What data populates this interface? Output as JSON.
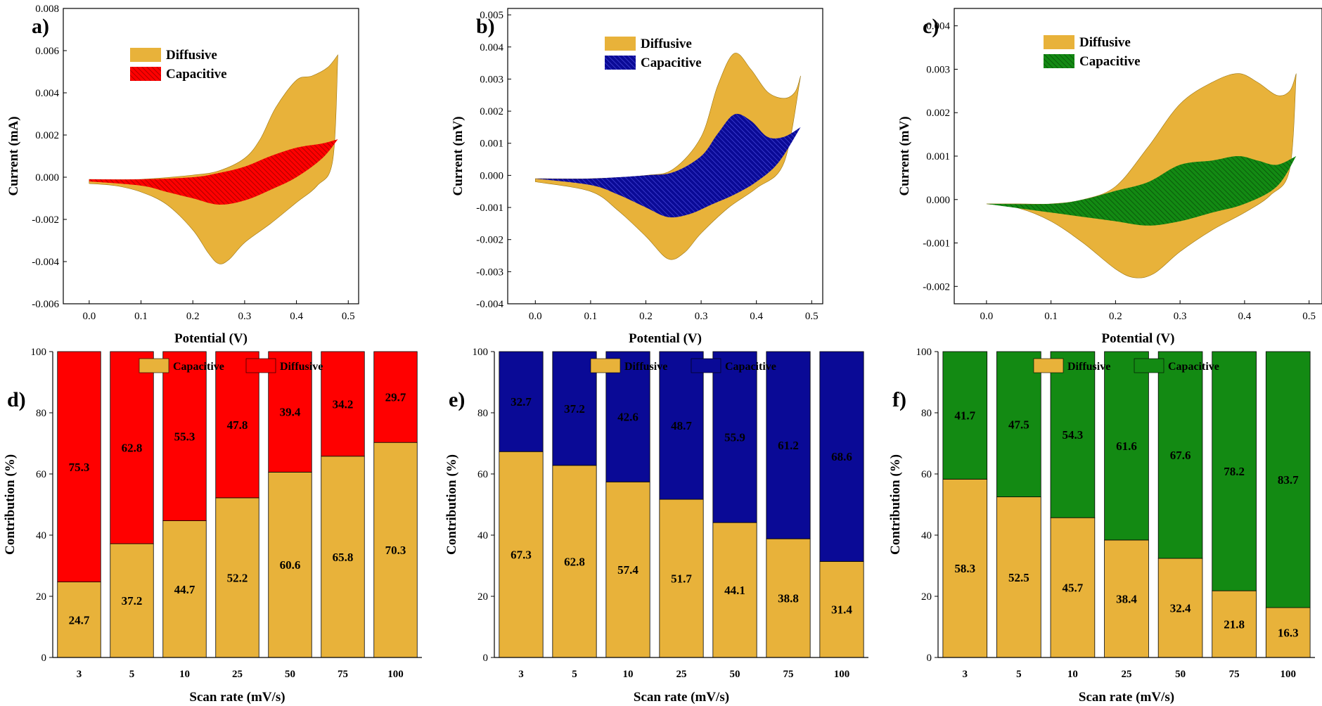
{
  "colors": {
    "gold": "#E8B23A",
    "red": "#FF0000",
    "navy": "#0A0A96",
    "green": "#138A13",
    "white": "#FFFFFF"
  },
  "chart_data": [
    {
      "id": "a",
      "type": "area",
      "panel_label": "a)",
      "xlabel": "Potential (V)",
      "ylabel": "Current (mA)",
      "xlim": [
        -0.05,
        0.52
      ],
      "ylim": [
        -0.006,
        0.008
      ],
      "xticks": [
        "0.0",
        "0.1",
        "0.2",
        "0.3",
        "0.4",
        "0.5"
      ],
      "yticks": [
        "-0.006",
        "-0.004",
        "-0.002",
        "0.000",
        "0.002",
        "0.004",
        "0.006",
        "0.008"
      ],
      "legend": [
        "Diffusive",
        "Capacitive"
      ],
      "series": [
        {
          "name": "Diffusive",
          "color_key": "gold",
          "hatch": false,
          "upper": [
            [
              0.0,
              -0.0001
            ],
            [
              0.1,
              -0.0001
            ],
            [
              0.2,
              0.0001
            ],
            [
              0.25,
              0.0003
            ],
            [
              0.3,
              0.0009
            ],
            [
              0.33,
              0.0018
            ],
            [
              0.36,
              0.0033
            ],
            [
              0.4,
              0.0046
            ],
            [
              0.43,
              0.0048
            ],
            [
              0.46,
              0.0052
            ],
            [
              0.48,
              0.0058
            ]
          ],
          "lower": [
            [
              0.0,
              -0.0003
            ],
            [
              0.05,
              -0.0004
            ],
            [
              0.1,
              -0.0007
            ],
            [
              0.15,
              -0.0013
            ],
            [
              0.2,
              -0.0025
            ],
            [
              0.23,
              -0.0036
            ],
            [
              0.25,
              -0.0041
            ],
            [
              0.27,
              -0.0039
            ],
            [
              0.3,
              -0.0031
            ],
            [
              0.35,
              -0.0022
            ],
            [
              0.4,
              -0.0012
            ],
            [
              0.44,
              -0.0004
            ],
            [
              0.47,
              0.0008
            ],
            [
              0.48,
              0.0058
            ]
          ]
        },
        {
          "name": "Capacitive",
          "color_key": "red",
          "hatch": true,
          "upper": [
            [
              0.0,
              -0.0001
            ],
            [
              0.1,
              -0.0001
            ],
            [
              0.2,
              0.0
            ],
            [
              0.25,
              0.0002
            ],
            [
              0.3,
              0.0005
            ],
            [
              0.35,
              0.001
            ],
            [
              0.4,
              0.0014
            ],
            [
              0.45,
              0.0016
            ],
            [
              0.48,
              0.0018
            ]
          ],
          "lower": [
            [
              0.0,
              -0.0002
            ],
            [
              0.1,
              -0.0004
            ],
            [
              0.15,
              -0.0007
            ],
            [
              0.2,
              -0.001
            ],
            [
              0.25,
              -0.0013
            ],
            [
              0.3,
              -0.0011
            ],
            [
              0.35,
              -0.0006
            ],
            [
              0.4,
              0.0
            ],
            [
              0.45,
              0.0009
            ],
            [
              0.48,
              0.0018
            ]
          ]
        }
      ]
    },
    {
      "id": "b",
      "type": "area",
      "panel_label": "b)",
      "xlabel": "Potential (V)",
      "ylabel": "Current (mV)",
      "xlim": [
        -0.05,
        0.52
      ],
      "ylim": [
        -0.004,
        0.0052
      ],
      "xticks": [
        "0.0",
        "0.1",
        "0.2",
        "0.3",
        "0.4",
        "0.5"
      ],
      "yticks": [
        "-0.004",
        "-0.003",
        "-0.002",
        "-0.001",
        "0.000",
        "0.001",
        "0.002",
        "0.003",
        "0.004",
        "0.005"
      ],
      "legend": [
        "Diffusive",
        "Capacitive"
      ],
      "series": [
        {
          "name": "Diffusive",
          "color_key": "gold",
          "hatch": false,
          "upper": [
            [
              0.0,
              -0.0001
            ],
            [
              0.1,
              -0.0001
            ],
            [
              0.2,
              0.0
            ],
            [
              0.25,
              0.0002
            ],
            [
              0.3,
              0.0012
            ],
            [
              0.33,
              0.0028
            ],
            [
              0.36,
              0.0038
            ],
            [
              0.39,
              0.0033
            ],
            [
              0.42,
              0.0026
            ],
            [
              0.45,
              0.0024
            ],
            [
              0.47,
              0.0026
            ],
            [
              0.48,
              0.0031
            ]
          ],
          "lower": [
            [
              0.0,
              -0.0002
            ],
            [
              0.1,
              -0.0005
            ],
            [
              0.15,
              -0.0011
            ],
            [
              0.2,
              -0.0019
            ],
            [
              0.24,
              -0.0026
            ],
            [
              0.27,
              -0.0024
            ],
            [
              0.3,
              -0.0018
            ],
            [
              0.35,
              -0.001
            ],
            [
              0.4,
              -0.0004
            ],
            [
              0.45,
              0.0004
            ],
            [
              0.48,
              0.0031
            ]
          ]
        },
        {
          "name": "Capacitive",
          "color_key": "navy",
          "hatch": true,
          "upper": [
            [
              0.0,
              -0.0001
            ],
            [
              0.1,
              -0.0001
            ],
            [
              0.2,
              0.0
            ],
            [
              0.25,
              0.0001
            ],
            [
              0.3,
              0.0006
            ],
            [
              0.33,
              0.0013
            ],
            [
              0.36,
              0.0019
            ],
            [
              0.39,
              0.0017
            ],
            [
              0.42,
              0.0012
            ],
            [
              0.45,
              0.0012
            ],
            [
              0.48,
              0.0015
            ]
          ],
          "lower": [
            [
              0.0,
              -0.0001
            ],
            [
              0.1,
              -0.0003
            ],
            [
              0.15,
              -0.0006
            ],
            [
              0.2,
              -0.001
            ],
            [
              0.24,
              -0.0013
            ],
            [
              0.28,
              -0.0012
            ],
            [
              0.32,
              -0.0009
            ],
            [
              0.36,
              -0.0006
            ],
            [
              0.4,
              -0.0002
            ],
            [
              0.44,
              0.0004
            ],
            [
              0.48,
              0.0015
            ]
          ]
        }
      ]
    },
    {
      "id": "c",
      "type": "area",
      "panel_label": "c)",
      "xlabel": "Potential (V)",
      "ylabel": "Current (mV)",
      "xlim": [
        -0.05,
        0.52
      ],
      "ylim": [
        -0.0024,
        0.0044
      ],
      "xticks": [
        "0.0",
        "0.1",
        "0.2",
        "0.3",
        "0.4",
        "0.5"
      ],
      "yticks": [
        "-0.002",
        "-0.001",
        "0.000",
        "0.001",
        "0.002",
        "0.003",
        "0.004"
      ],
      "legend": [
        "Diffusive",
        "Capacitive"
      ],
      "series": [
        {
          "name": "Diffusive",
          "color_key": "gold",
          "hatch": false,
          "upper": [
            [
              0.0,
              -0.0001
            ],
            [
              0.05,
              -0.0001
            ],
            [
              0.1,
              -0.0001
            ],
            [
              0.15,
              0.0
            ],
            [
              0.2,
              0.0003
            ],
            [
              0.25,
              0.0012
            ],
            [
              0.3,
              0.0022
            ],
            [
              0.35,
              0.0027
            ],
            [
              0.39,
              0.0029
            ],
            [
              0.42,
              0.0027
            ],
            [
              0.45,
              0.0024
            ],
            [
              0.47,
              0.0025
            ],
            [
              0.48,
              0.0029
            ]
          ],
          "lower": [
            [
              0.0,
              -0.0001
            ],
            [
              0.05,
              -0.0002
            ],
            [
              0.1,
              -0.0005
            ],
            [
              0.15,
              -0.001
            ],
            [
              0.2,
              -0.0016
            ],
            [
              0.23,
              -0.0018
            ],
            [
              0.26,
              -0.0017
            ],
            [
              0.3,
              -0.0012
            ],
            [
              0.35,
              -0.0007
            ],
            [
              0.4,
              -0.0003
            ],
            [
              0.44,
              0.0001
            ],
            [
              0.47,
              0.0007
            ],
            [
              0.48,
              0.0029
            ]
          ]
        },
        {
          "name": "Capacitive",
          "color_key": "green",
          "hatch": true,
          "upper": [
            [
              0.0,
              -0.0001
            ],
            [
              0.1,
              -0.0001
            ],
            [
              0.15,
              0.0
            ],
            [
              0.2,
              0.0002
            ],
            [
              0.25,
              0.0004
            ],
            [
              0.3,
              0.0008
            ],
            [
              0.35,
              0.0009
            ],
            [
              0.39,
              0.001
            ],
            [
              0.42,
              0.0009
            ],
            [
              0.45,
              0.0008
            ],
            [
              0.48,
              0.001
            ]
          ],
          "lower": [
            [
              0.0,
              -0.0001
            ],
            [
              0.05,
              -0.0002
            ],
            [
              0.1,
              -0.0003
            ],
            [
              0.15,
              -0.0004
            ],
            [
              0.2,
              -0.0005
            ],
            [
              0.25,
              -0.0006
            ],
            [
              0.3,
              -0.0005
            ],
            [
              0.35,
              -0.0003
            ],
            [
              0.4,
              -0.0001
            ],
            [
              0.45,
              0.0003
            ],
            [
              0.48,
              0.001
            ]
          ]
        }
      ]
    },
    {
      "id": "d",
      "type": "bar",
      "panel_label": "d)",
      "xlabel": "Scan rate (mV/s)",
      "ylabel": "Contribution (%)",
      "ylim": [
        0,
        100
      ],
      "yticks": [
        "0",
        "20",
        "40",
        "60",
        "80",
        "100"
      ],
      "categories": [
        "3",
        "5",
        "10",
        "25",
        "50",
        "75",
        "100"
      ],
      "legend": [
        "Capacitive",
        "Diffusive"
      ],
      "series": [
        {
          "name": "Capacitive",
          "color_key": "gold",
          "position": "bottom",
          "label_color_key": "black",
          "values": [
            24.7,
            37.2,
            44.7,
            52.2,
            60.6,
            65.8,
            70.3
          ]
        },
        {
          "name": "Diffusive",
          "color_key": "red",
          "position": "top",
          "label_color_key": "white",
          "values": [
            75.3,
            62.8,
            55.3,
            47.8,
            39.4,
            34.2,
            29.7
          ]
        }
      ]
    },
    {
      "id": "e",
      "type": "bar",
      "panel_label": "e)",
      "xlabel": "Scan rate (mV/s)",
      "ylabel": "Contribution (%)",
      "ylim": [
        0,
        100
      ],
      "yticks": [
        "0",
        "20",
        "40",
        "60",
        "80",
        "100"
      ],
      "categories": [
        "3",
        "5",
        "10",
        "25",
        "50",
        "75",
        "100"
      ],
      "legend": [
        "Diffusive",
        "Capacitive"
      ],
      "series": [
        {
          "name": "Diffusive",
          "color_key": "gold",
          "position": "bottom",
          "label_color_key": "black",
          "values": [
            67.3,
            62.8,
            57.4,
            51.7,
            44.1,
            38.8,
            31.4
          ]
        },
        {
          "name": "Capacitive",
          "color_key": "navy",
          "position": "top",
          "label_color_key": "white",
          "values": [
            32.7,
            37.2,
            42.6,
            48.7,
            55.9,
            61.2,
            68.6
          ]
        }
      ]
    },
    {
      "id": "f",
      "type": "bar",
      "panel_label": "f)",
      "xlabel": "Scan rate (mV/s)",
      "ylabel": "Contribution (%)",
      "ylim": [
        0,
        100
      ],
      "yticks": [
        "0",
        "20",
        "40",
        "60",
        "80",
        "100"
      ],
      "categories": [
        "3",
        "5",
        "10",
        "25",
        "50",
        "75",
        "100"
      ],
      "legend": [
        "Diffusive",
        "Capacitive"
      ],
      "series": [
        {
          "name": "Diffusive",
          "color_key": "gold",
          "position": "bottom",
          "label_color_key": "black",
          "values": [
            58.3,
            52.5,
            45.7,
            38.4,
            32.4,
            21.8,
            16.3
          ]
        },
        {
          "name": "Capacitive",
          "color_key": "green",
          "position": "top",
          "label_color_key": "white",
          "values": [
            41.7,
            47.5,
            54.3,
            61.6,
            67.6,
            78.2,
            83.7
          ]
        }
      ]
    }
  ]
}
